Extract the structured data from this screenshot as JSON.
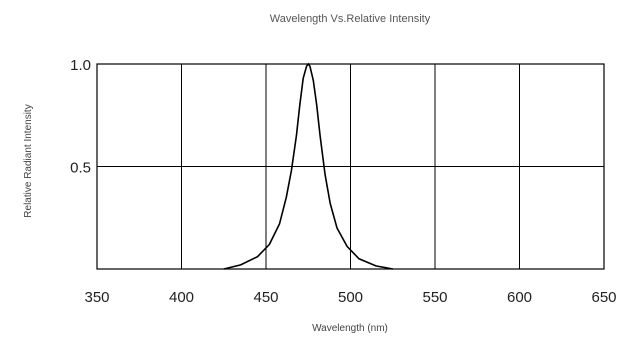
{
  "chart_data": {
    "type": "line",
    "title": "Wavelength  Vs.Relative Intensity",
    "xlabel": "Wavelength (nm)",
    "ylabel": "Relative Radiant Intensity",
    "xlim": [
      350,
      650
    ],
    "ylim": [
      0,
      1.0
    ],
    "x_ticks": [
      "350",
      "400",
      "450",
      "500",
      "550",
      "600",
      "650"
    ],
    "y_ticks": [
      {
        "value": 1.0,
        "label": "1.0"
      },
      {
        "value": 0.5,
        "label": "0.5"
      }
    ],
    "grid": true,
    "series": [
      {
        "x": [
          425,
          435,
          445,
          452,
          458,
          462,
          465,
          468,
          470,
          472,
          474,
          475,
          476,
          478,
          480,
          482,
          485,
          488,
          492,
          498,
          505,
          515,
          525
        ],
        "y": [
          0.0,
          0.02,
          0.06,
          0.12,
          0.22,
          0.35,
          0.48,
          0.65,
          0.8,
          0.93,
          0.99,
          1.0,
          0.99,
          0.92,
          0.8,
          0.65,
          0.46,
          0.32,
          0.2,
          0.11,
          0.05,
          0.015,
          0.0
        ]
      }
    ]
  }
}
